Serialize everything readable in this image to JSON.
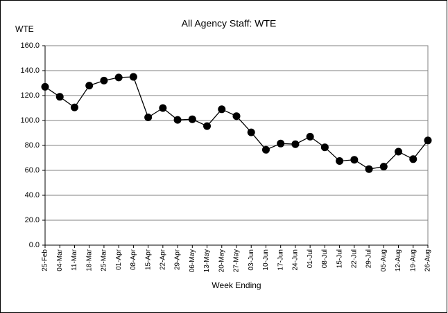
{
  "chart_data": {
    "type": "line",
    "title": "All Agency Staff: WTE",
    "y_label": "WTE",
    "x_label": "Week Ending",
    "categories": [
      "25-Feb",
      "04-Mar",
      "11-Mar",
      "18-Mar",
      "25-Mar",
      "01-Apr",
      "08-Apr",
      "15-Apr",
      "22-Apr",
      "29-Apr",
      "06-May",
      "13-May",
      "20-May",
      "27-May",
      "03-Jun",
      "10-Jun",
      "17-Jun",
      "24-Jun",
      "01-Jul",
      "08-Jul",
      "15-Jul",
      "22-Jul",
      "29-Jul",
      "05-Aug",
      "12-Aug",
      "19-Aug",
      "26-Aug"
    ],
    "values": [
      127,
      119,
      110.5,
      128,
      132,
      134.5,
      135,
      102.5,
      110,
      100.5,
      101,
      95.5,
      109,
      103.5,
      90.5,
      76.5,
      81.5,
      81,
      87,
      78.5,
      67.5,
      68.5,
      61,
      63,
      75,
      69,
      84
    ],
    "color": "#000000",
    "ylim": [
      0,
      160
    ],
    "yticks": [
      {
        "value": 0,
        "label": "0.0"
      },
      {
        "value": 20,
        "label": "20.0"
      },
      {
        "value": 40,
        "label": "40.0"
      },
      {
        "value": 60,
        "label": "60.0"
      },
      {
        "value": 80,
        "label": "80.0"
      },
      {
        "value": 100,
        "label": "100.0"
      },
      {
        "value": 120,
        "label": "120.0"
      },
      {
        "value": 140,
        "label": "140.0"
      },
      {
        "value": 160,
        "label": "160.0"
      }
    ],
    "grid": true
  }
}
